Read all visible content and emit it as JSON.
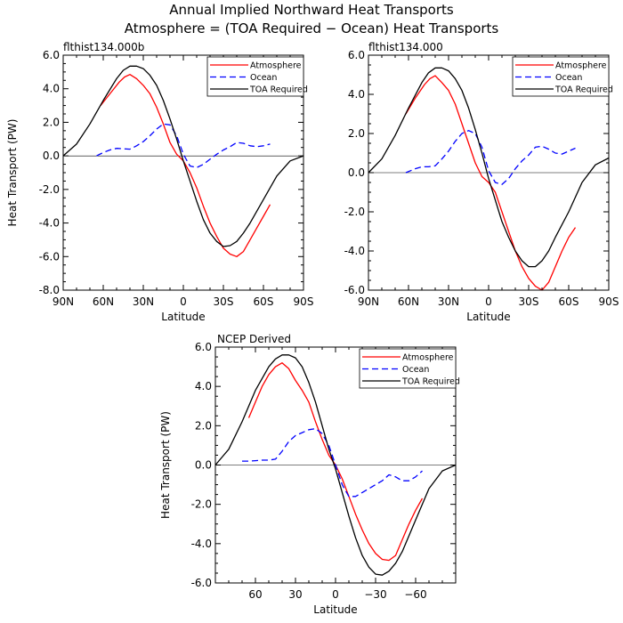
{
  "figure": {
    "title_line1": "Annual Implied Northward Heat Transports",
    "title_line2": "Atmosphere = (TOA Required − Ocean) Heat Transports"
  },
  "chart_data": [
    {
      "type": "line",
      "title": "flthist134.000b",
      "xlabel": "Latitude",
      "ylabel": "Heat Transport (PW)",
      "xlim": [
        90,
        -90
      ],
      "ylim": [
        -8,
        6
      ],
      "xticks": [
        90,
        60,
        30,
        0,
        -30,
        -60,
        -90
      ],
      "xticklabels": [
        "90N",
        "60N",
        "30N",
        "0",
        "30S",
        "60S",
        "90S"
      ],
      "yticks": [
        6,
        4,
        2,
        0,
        -2,
        -4,
        -6,
        -8
      ],
      "yticklabels": [
        "6.0",
        "4.0",
        "2.0",
        "0.0",
        "-2.0",
        "-4.0",
        "-6.0",
        "-8.0"
      ],
      "legend_position": "top-right",
      "series": [
        {
          "name": "Atmosphere",
          "color": "#ff0000",
          "dash": "solid",
          "x": [
            62,
            55,
            48,
            44,
            40,
            35,
            30,
            25,
            20,
            15,
            10,
            5,
            0,
            -5,
            -10,
            -15,
            -20,
            -25,
            -30,
            -35,
            -40,
            -45,
            -50,
            -55,
            -60,
            -65
          ],
          "y": [
            3.0,
            3.7,
            4.4,
            4.7,
            4.85,
            4.6,
            4.2,
            3.7,
            2.9,
            1.9,
            0.8,
            0.1,
            -0.3,
            -1.0,
            -1.9,
            -3.0,
            -4.0,
            -4.8,
            -5.5,
            -5.85,
            -6.0,
            -5.7,
            -5.0,
            -4.3,
            -3.6,
            -2.9
          ]
        },
        {
          "name": "Ocean",
          "color": "#0000ff",
          "dash": "dashed",
          "x": [
            65,
            60,
            55,
            50,
            45,
            40,
            35,
            30,
            25,
            20,
            15,
            10,
            5,
            0,
            -5,
            -10,
            -15,
            -20,
            -25,
            -30,
            -35,
            -40,
            -45,
            -50,
            -55,
            -60,
            -65
          ],
          "y": [
            0.0,
            0.2,
            0.35,
            0.45,
            0.42,
            0.4,
            0.6,
            0.85,
            1.2,
            1.6,
            1.9,
            1.85,
            1.2,
            0.1,
            -0.6,
            -0.7,
            -0.5,
            -0.2,
            0.1,
            0.35,
            0.55,
            0.8,
            0.75,
            0.6,
            0.55,
            0.6,
            0.7
          ]
        },
        {
          "name": "TOA Required",
          "color": "#000000",
          "dash": "solid",
          "x": [
            90,
            80,
            70,
            60,
            50,
            45,
            40,
            35,
            30,
            25,
            20,
            15,
            10,
            5,
            0,
            -5,
            -10,
            -15,
            -20,
            -25,
            -30,
            -35,
            -40,
            -45,
            -50,
            -60,
            -70,
            -80,
            -90
          ],
          "y": [
            0.0,
            0.7,
            1.9,
            3.3,
            4.6,
            5.1,
            5.35,
            5.35,
            5.2,
            4.8,
            4.2,
            3.3,
            2.2,
            1.0,
            -0.3,
            -1.5,
            -2.7,
            -3.8,
            -4.6,
            -5.1,
            -5.4,
            -5.35,
            -5.1,
            -4.6,
            -4.0,
            -2.6,
            -1.2,
            -0.3,
            0.0
          ]
        }
      ]
    },
    {
      "type": "line",
      "title": "flthist134.000",
      "xlabel": "Latitude",
      "ylabel": "",
      "xlim": [
        90,
        -90
      ],
      "ylim": [
        -6,
        6
      ],
      "xticks": [
        90,
        60,
        30,
        0,
        -30,
        -60,
        -90
      ],
      "xticklabels": [
        "90N",
        "60N",
        "30N",
        "0",
        "30S",
        "60S",
        "90S"
      ],
      "yticks": [
        6,
        4,
        2,
        0,
        -2,
        -4,
        -6
      ],
      "yticklabels": [
        "6.0",
        "4.0",
        "2.0",
        "0.0",
        "-2.0",
        "-4.0",
        "-6.0"
      ],
      "legend_position": "top-right",
      "series": [
        {
          "name": "Atmosphere",
          "color": "#ff0000",
          "dash": "solid",
          "x": [
            62,
            55,
            48,
            44,
            40,
            35,
            30,
            25,
            20,
            15,
            10,
            5,
            0,
            -5,
            -10,
            -15,
            -20,
            -25,
            -30,
            -35,
            -40,
            -45,
            -50,
            -55,
            -60,
            -65
          ],
          "y": [
            3.0,
            3.8,
            4.5,
            4.8,
            4.95,
            4.6,
            4.2,
            3.5,
            2.5,
            1.5,
            0.5,
            -0.2,
            -0.5,
            -1.0,
            -2.0,
            -3.0,
            -4.0,
            -4.8,
            -5.4,
            -5.8,
            -6.0,
            -5.6,
            -4.8,
            -4.0,
            -3.3,
            -2.8
          ]
        },
        {
          "name": "Ocean",
          "color": "#0000ff",
          "dash": "dashed",
          "x": [
            62,
            55,
            50,
            45,
            40,
            35,
            30,
            25,
            20,
            15,
            10,
            5,
            0,
            -5,
            -10,
            -15,
            -20,
            -25,
            -30,
            -35,
            -40,
            -45,
            -50,
            -55,
            -60,
            -65
          ],
          "y": [
            0.0,
            0.2,
            0.3,
            0.3,
            0.35,
            0.7,
            1.1,
            1.6,
            2.0,
            2.15,
            2.0,
            1.3,
            0.1,
            -0.5,
            -0.6,
            -0.3,
            0.2,
            0.6,
            0.9,
            1.3,
            1.35,
            1.2,
            1.0,
            0.95,
            1.1,
            1.25
          ]
        },
        {
          "name": "TOA Required",
          "color": "#000000",
          "dash": "solid",
          "x": [
            90,
            80,
            70,
            60,
            50,
            45,
            40,
            35,
            30,
            25,
            20,
            15,
            10,
            5,
            0,
            -5,
            -10,
            -15,
            -20,
            -25,
            -30,
            -35,
            -40,
            -45,
            -50,
            -60,
            -70,
            -80,
            -90
          ],
          "y": [
            0.0,
            0.7,
            1.9,
            3.3,
            4.6,
            5.1,
            5.35,
            5.35,
            5.2,
            4.8,
            4.2,
            3.3,
            2.2,
            1.0,
            -0.3,
            -1.4,
            -2.5,
            -3.3,
            -4.0,
            -4.5,
            -4.8,
            -4.8,
            -4.5,
            -4.0,
            -3.3,
            -2.0,
            -0.5,
            0.4,
            0.75
          ]
        }
      ]
    },
    {
      "type": "line",
      "title": "NCEP Derived",
      "xlabel": "Latitude",
      "ylabel": "Heat Transport (PW)",
      "xlim": [
        90,
        -90
      ],
      "ylim": [
        -6,
        6
      ],
      "xticks": [
        60,
        30,
        0,
        -30,
        -60
      ],
      "xticklabels": [
        "60",
        "30",
        "0",
        "−30",
        "−60"
      ],
      "yticks": [
        6,
        4,
        2,
        0,
        -2,
        -4,
        -6
      ],
      "yticklabels": [
        "6.0",
        "4.0",
        "2.0",
        "0.0",
        "-2.0",
        "-4.0",
        "-6.0"
      ],
      "legend_position": "top-right",
      "series": [
        {
          "name": "Atmosphere",
          "color": "#ff0000",
          "dash": "solid",
          "x": [
            65,
            60,
            55,
            50,
            45,
            40,
            35,
            30,
            25,
            20,
            15,
            10,
            5,
            0,
            -5,
            -10,
            -15,
            -20,
            -25,
            -30,
            -35,
            -40,
            -45,
            -50,
            -55,
            -60,
            -65
          ],
          "y": [
            2.4,
            3.2,
            4.0,
            4.6,
            5.0,
            5.2,
            4.9,
            4.3,
            3.8,
            3.2,
            2.2,
            1.3,
            0.5,
            0.0,
            -0.7,
            -1.6,
            -2.5,
            -3.3,
            -4.0,
            -4.5,
            -4.8,
            -4.85,
            -4.6,
            -3.8,
            -3.0,
            -2.3,
            -1.7
          ]
        },
        {
          "name": "Ocean",
          "color": "#0000ff",
          "dash": "dashed",
          "x": [
            70,
            65,
            60,
            55,
            50,
            45,
            40,
            35,
            30,
            25,
            20,
            15,
            10,
            5,
            0,
            -5,
            -10,
            -15,
            -20,
            -25,
            -30,
            -35,
            -40,
            -45,
            -50,
            -55,
            -60,
            -65
          ],
          "y": [
            0.2,
            0.2,
            0.22,
            0.25,
            0.25,
            0.3,
            0.7,
            1.2,
            1.5,
            1.65,
            1.8,
            1.85,
            1.6,
            1.0,
            0.0,
            -1.0,
            -1.6,
            -1.6,
            -1.4,
            -1.2,
            -1.0,
            -0.8,
            -0.5,
            -0.6,
            -0.8,
            -0.8,
            -0.6,
            -0.3
          ]
        },
        {
          "name": "TOA Required",
          "color": "#000000",
          "dash": "solid",
          "x": [
            90,
            80,
            70,
            60,
            50,
            45,
            40,
            35,
            30,
            25,
            20,
            15,
            10,
            5,
            0,
            -5,
            -10,
            -15,
            -20,
            -25,
            -30,
            -35,
            -40,
            -45,
            -50,
            -60,
            -70,
            -80,
            -90
          ],
          "y": [
            0.0,
            0.8,
            2.2,
            3.8,
            5.0,
            5.4,
            5.6,
            5.6,
            5.45,
            5.0,
            4.2,
            3.2,
            2.0,
            0.8,
            -0.2,
            -1.4,
            -2.6,
            -3.7,
            -4.6,
            -5.2,
            -5.55,
            -5.6,
            -5.4,
            -5.0,
            -4.4,
            -2.8,
            -1.2,
            -0.3,
            0.0
          ]
        }
      ]
    }
  ]
}
